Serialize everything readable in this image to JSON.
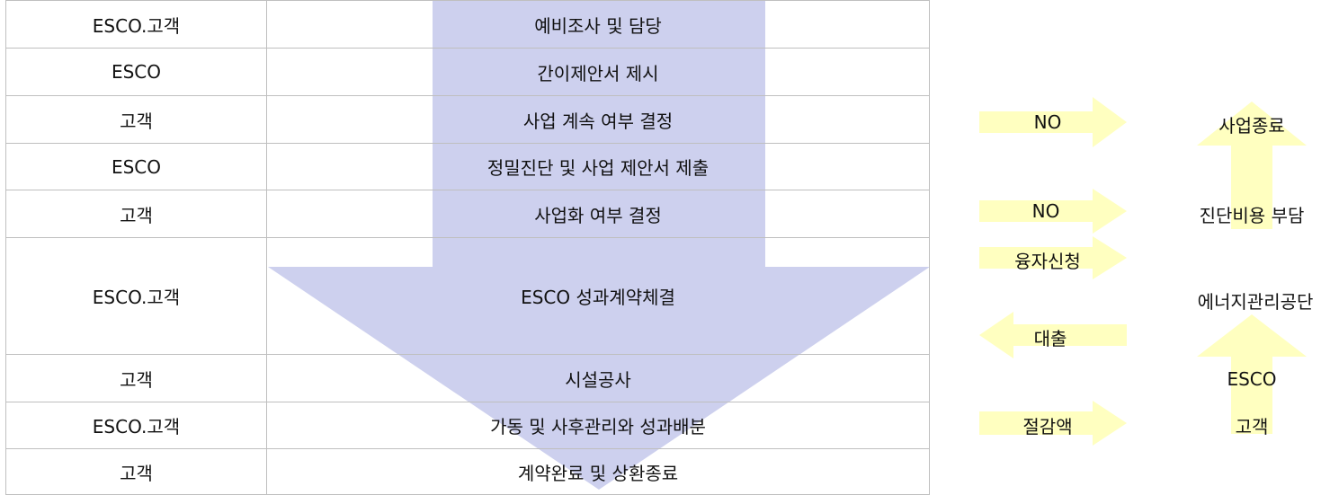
{
  "colors": {
    "main_arrow": "#cdd0ee",
    "side_arrow": "#ffffc0",
    "table_border": "#bfbfbf",
    "text": "#111111"
  },
  "steps": [
    {
      "role": "ESCO.고객",
      "action": "예비조사 및 담당"
    },
    {
      "role": "ESCO",
      "action": "간이제안서 제시"
    },
    {
      "role": "고객",
      "action": "사업 계속 여부 결정"
    },
    {
      "role": "ESCO",
      "action": "정밀진단 및 사업 제안서 제출"
    },
    {
      "role": "고객",
      "action": "사업화 여부 결정"
    },
    {
      "role": "ESCO.고객",
      "action": "ESCO 성과계약체결"
    },
    {
      "role": "고객",
      "action": "시설공사"
    },
    {
      "role": "ESCO.고객",
      "action": "가동 및 사후관리와 성과배분"
    },
    {
      "role": "고객",
      "action": "계약완료 및 상환종료"
    }
  ],
  "side_flow": {
    "arrow_labels": {
      "no_1": "NO",
      "no_2": "NO",
      "loan_apply": "융자신청",
      "loan": "대출",
      "savings": "절감액"
    },
    "right_labels": {
      "project_end": "사업종료",
      "diagnosis_cost": "진단비용 부담",
      "agency": "에너지관리공단",
      "esco": "ESCO",
      "customer": "고객"
    }
  }
}
